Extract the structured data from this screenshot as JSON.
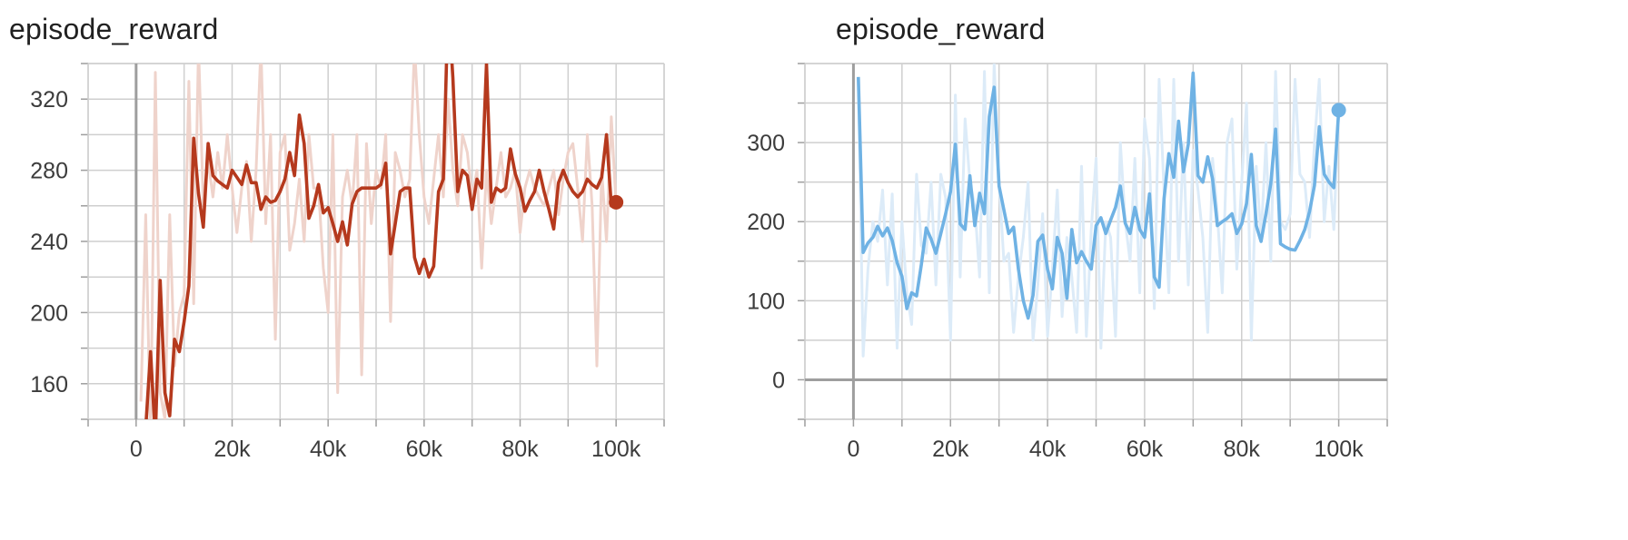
{
  "colors": {
    "left_series": "#b5391d",
    "left_raw": "#efd3cb",
    "right_series": "#6fb2e4",
    "right_raw": "#dcebf8",
    "grid": "#cfcfcf",
    "axis": "#9e9e9e"
  },
  "chart_data": [
    {
      "type": "line",
      "title": "episode_reward",
      "xlabel": "",
      "ylabel": "",
      "xlim": [
        -10000,
        110000
      ],
      "ylim": [
        140,
        340
      ],
      "grid": true,
      "x_ticks": [
        0,
        20000,
        40000,
        60000,
        80000,
        100000
      ],
      "x_tick_labels": [
        "0",
        "20k",
        "40k",
        "60k",
        "80k",
        "100k"
      ],
      "y_ticks": [
        160,
        200,
        240,
        280,
        320
      ],
      "y_tick_labels": [
        "160",
        "200",
        "240",
        "280",
        "320"
      ],
      "series": [
        {
          "role": "smoothed",
          "x": [
            1000,
            2000,
            3000,
            4000,
            5000,
            6000,
            7000,
            8000,
            9000,
            10000,
            11000,
            12000,
            13000,
            14000,
            15000,
            16000,
            17000,
            18000,
            19000,
            20000,
            21000,
            22000,
            23000,
            24000,
            25000,
            26000,
            27000,
            28000,
            29000,
            30000,
            31000,
            32000,
            33000,
            34000,
            35000,
            36000,
            37000,
            38000,
            39000,
            40000,
            41000,
            42000,
            43000,
            44000,
            45000,
            46000,
            47000,
            48000,
            49000,
            50000,
            51000,
            52000,
            53000,
            54000,
            55000,
            56000,
            57000,
            58000,
            59000,
            60000,
            61000,
            62000,
            63000,
            64000,
            65000,
            66000,
            67000,
            68000,
            69000,
            70000,
            71000,
            72000,
            73000,
            74000,
            75000,
            76000,
            77000,
            78000,
            79000,
            80000,
            81000,
            82000,
            83000,
            84000,
            85000,
            86000,
            87000,
            88000,
            89000,
            90000,
            91000,
            92000,
            93000,
            94000,
            95000,
            96000,
            97000,
            98000,
            99000,
            100000
          ],
          "y": [
            100,
            135,
            178,
            130,
            218,
            155,
            142,
            185,
            178,
            195,
            215,
            298,
            267,
            248,
            295,
            277,
            274,
            272,
            270,
            280,
            276,
            272,
            283,
            273,
            273,
            258,
            265,
            262,
            263,
            268,
            275,
            290,
            277,
            311,
            295,
            253,
            260,
            272,
            256,
            259,
            250,
            240,
            251,
            238,
            261,
            268,
            270,
            270,
            270,
            270,
            272,
            284,
            233,
            250,
            268,
            270,
            270,
            231,
            222,
            230,
            220,
            226,
            268,
            275,
            375,
            332,
            268,
            280,
            277,
            258,
            275,
            270,
            340,
            262,
            270,
            268,
            270,
            292,
            278,
            270,
            257,
            263,
            268,
            280,
            268,
            258,
            247,
            273,
            280,
            273,
            268,
            265,
            268,
            275,
            272,
            270,
            276,
            300,
            260,
            262
          ]
        },
        {
          "role": "raw",
          "x": [
            1000,
            2000,
            3000,
            4000,
            5000,
            6000,
            7000,
            8000,
            9000,
            10000,
            11000,
            12000,
            13000,
            14000,
            15000,
            16000,
            17000,
            18000,
            19000,
            20000,
            21000,
            22000,
            23000,
            24000,
            25000,
            26000,
            27000,
            28000,
            29000,
            30000,
            31000,
            32000,
            33000,
            34000,
            35000,
            36000,
            37000,
            38000,
            39000,
            40000,
            41000,
            42000,
            43000,
            44000,
            45000,
            46000,
            47000,
            48000,
            49000,
            50000,
            51000,
            52000,
            53000,
            54000,
            55000,
            56000,
            57000,
            58000,
            59000,
            60000,
            61000,
            62000,
            63000,
            64000,
            65000,
            66000,
            67000,
            68000,
            69000,
            70000,
            71000,
            72000,
            73000,
            74000,
            75000,
            76000,
            77000,
            78000,
            79000,
            80000,
            81000,
            82000,
            83000,
            84000,
            85000,
            86000,
            87000,
            88000,
            89000,
            90000,
            91000,
            92000,
            93000,
            94000,
            95000,
            96000,
            97000,
            98000,
            99000,
            100000
          ],
          "y": [
            150,
            255,
            130,
            335,
            155,
            140,
            255,
            170,
            200,
            210,
            330,
            205,
            350,
            260,
            285,
            265,
            290,
            270,
            300,
            270,
            245,
            270,
            285,
            240,
            280,
            350,
            250,
            300,
            185,
            290,
            300,
            235,
            250,
            275,
            240,
            300,
            270,
            270,
            225,
            200,
            300,
            155,
            265,
            280,
            260,
            300,
            165,
            295,
            250,
            280,
            270,
            300,
            195,
            290,
            280,
            265,
            275,
            350,
            300,
            265,
            250,
            275,
            300,
            265,
            320,
            280,
            260,
            300,
            290,
            265,
            280,
            225,
            280,
            250,
            270,
            290,
            265,
            270,
            280,
            245,
            270,
            280,
            270,
            265,
            260,
            270,
            280,
            255,
            275,
            290,
            295,
            270,
            240,
            300,
            260,
            170,
            280,
            240,
            310,
            260
          ]
        }
      ]
    },
    {
      "type": "line",
      "title": "episode_reward",
      "xlabel": "",
      "ylabel": "",
      "xlim": [
        -10000,
        110000
      ],
      "ylim": [
        -50,
        400
      ],
      "grid": true,
      "x_ticks": [
        0,
        20000,
        40000,
        60000,
        80000,
        100000
      ],
      "x_tick_labels": [
        "0",
        "20k",
        "40k",
        "60k",
        "80k",
        "100k"
      ],
      "y_ticks": [
        0,
        100,
        200,
        300
      ],
      "y_tick_labels": [
        "0",
        "100",
        "200",
        "300"
      ],
      "series": [
        {
          "role": "smoothed",
          "x": [
            1000,
            2000,
            3000,
            4000,
            5000,
            6000,
            7000,
            8000,
            9000,
            10000,
            11000,
            12000,
            13000,
            14000,
            15000,
            16000,
            17000,
            18000,
            19000,
            20000,
            21000,
            22000,
            23000,
            24000,
            25000,
            26000,
            27000,
            28000,
            29000,
            30000,
            31000,
            32000,
            33000,
            34000,
            35000,
            36000,
            37000,
            38000,
            39000,
            40000,
            41000,
            42000,
            43000,
            44000,
            45000,
            46000,
            47000,
            48000,
            49000,
            50000,
            51000,
            52000,
            53000,
            54000,
            55000,
            56000,
            57000,
            58000,
            59000,
            60000,
            61000,
            62000,
            63000,
            64000,
            65000,
            66000,
            67000,
            68000,
            69000,
            70000,
            71000,
            72000,
            73000,
            74000,
            75000,
            76000,
            77000,
            78000,
            79000,
            80000,
            81000,
            82000,
            83000,
            84000,
            85000,
            86000,
            87000,
            88000,
            89000,
            90000,
            91000,
            92000,
            93000,
            94000,
            95000,
            96000,
            97000,
            98000,
            99000,
            100000
          ],
          "y": [
            383,
            161,
            173,
            180,
            194,
            182,
            192,
            176,
            148,
            131,
            90,
            110,
            106,
            146,
            192,
            178,
            160,
            185,
            210,
            238,
            298,
            197,
            190,
            258,
            195,
            236,
            210,
            333,
            370,
            245,
            215,
            185,
            193,
            140,
            100,
            78,
            107,
            175,
            183,
            140,
            115,
            180,
            160,
            103,
            190,
            148,
            162,
            150,
            140,
            195,
            205,
            185,
            202,
            218,
            245,
            198,
            185,
            218,
            190,
            180,
            235,
            130,
            117,
            229,
            286,
            256,
            327,
            263,
            298,
            388,
            258,
            250,
            282,
            254,
            195,
            200,
            204,
            210,
            185,
            197,
            223,
            285,
            195,
            175,
            210,
            248,
            317,
            172,
            168,
            165,
            164,
            176,
            190,
            213,
            246,
            320,
            260,
            250,
            243,
            341
          ]
        },
        {
          "role": "raw",
          "x": [
            1000,
            2000,
            3000,
            4000,
            5000,
            6000,
            7000,
            8000,
            9000,
            10000,
            11000,
            12000,
            13000,
            14000,
            15000,
            16000,
            17000,
            18000,
            19000,
            20000,
            21000,
            22000,
            23000,
            24000,
            25000,
            26000,
            27000,
            28000,
            29000,
            30000,
            31000,
            32000,
            33000,
            34000,
            35000,
            36000,
            37000,
            38000,
            39000,
            40000,
            41000,
            42000,
            43000,
            44000,
            45000,
            46000,
            47000,
            48000,
            49000,
            50000,
            51000,
            52000,
            53000,
            54000,
            55000,
            56000,
            57000,
            58000,
            59000,
            60000,
            61000,
            62000,
            63000,
            64000,
            65000,
            66000,
            67000,
            68000,
            69000,
            70000,
            71000,
            72000,
            73000,
            74000,
            75000,
            76000,
            77000,
            78000,
            79000,
            80000,
            81000,
            82000,
            83000,
            84000,
            85000,
            86000,
            87000,
            88000,
            89000,
            90000,
            91000,
            92000,
            93000,
            94000,
            95000,
            96000,
            97000,
            98000,
            99000,
            100000
          ],
          "y": [
            380,
            30,
            140,
            200,
            175,
            240,
            120,
            235,
            40,
            200,
            110,
            70,
            260,
            170,
            160,
            250,
            120,
            260,
            230,
            50,
            360,
            130,
            330,
            250,
            220,
            130,
            390,
            110,
            400,
            250,
            150,
            160,
            60,
            130,
            180,
            250,
            50,
            120,
            210,
            55,
            140,
            240,
            80,
            180,
            130,
            60,
            270,
            55,
            190,
            280,
            40,
            200,
            180,
            55,
            300,
            200,
            150,
            280,
            110,
            330,
            280,
            90,
            380,
            240,
            110,
            380,
            150,
            300,
            120,
            290,
            240,
            180,
            60,
            280,
            210,
            110,
            300,
            330,
            140,
            250,
            350,
            50,
            270,
            180,
            300,
            150,
            390,
            200,
            190,
            210,
            380,
            260,
            250,
            180,
            300,
            380,
            200,
            270,
            190,
            341
          ]
        }
      ]
    }
  ]
}
